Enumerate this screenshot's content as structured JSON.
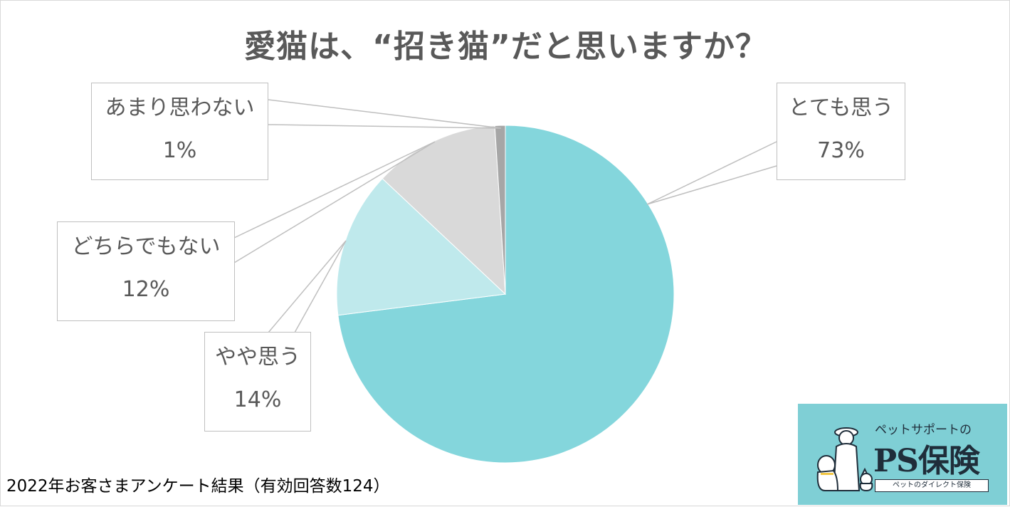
{
  "chart_data": {
    "type": "pie",
    "title": "愛猫は、“招き猫”だと思いますか？",
    "slices": [
      {
        "label": "とても思う",
        "value": 73,
        "value_label": "73%",
        "color": "#84d6dc"
      },
      {
        "label": "やや思う",
        "value": 14,
        "value_label": "14%",
        "color": "#bfe9ec"
      },
      {
        "label": "どちらでもない",
        "value": 12,
        "value_label": "12%",
        "color": "#d9d9d9"
      },
      {
        "label": "あまり思わない",
        "value": 1,
        "value_label": "1%",
        "color": "#a6a6a6"
      }
    ],
    "legend": "callout-labels"
  },
  "footnote": "2022年お客さまアンケート結果（有効回答数124）",
  "logo": {
    "tagline": "ペットサポートの",
    "brand": "PS保険",
    "subtitle": "ペットのダイレクト保険",
    "color": "#7fcfd5"
  }
}
